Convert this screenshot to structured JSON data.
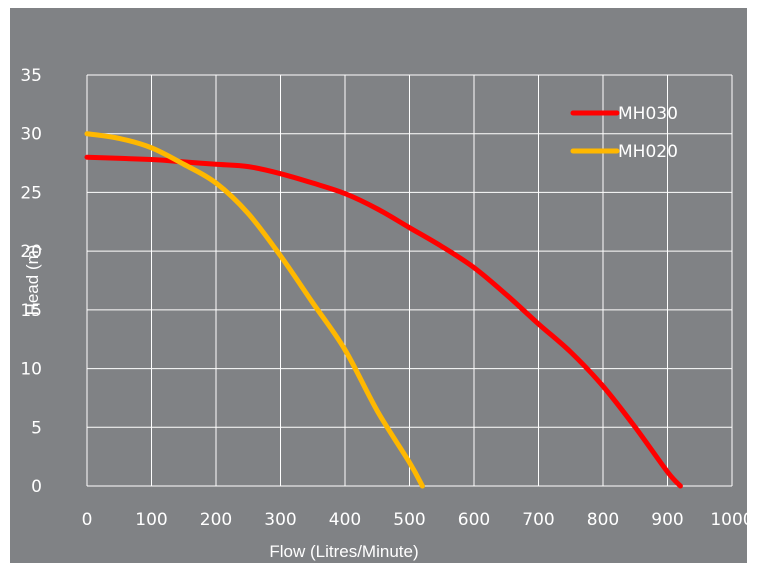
{
  "chart_data": {
    "type": "line",
    "xlabel": "Flow (Litres/Minute)",
    "ylabel": "Head (m)",
    "xlim": [
      0,
      1000
    ],
    "ylim": [
      0,
      35
    ],
    "x_ticks": [
      "0",
      "100",
      "200",
      "300",
      "400",
      "500",
      "600",
      "700",
      "800",
      "900",
      "1000"
    ],
    "y_ticks": [
      "0",
      "5",
      "10",
      "15",
      "20",
      "25",
      "30",
      "35"
    ],
    "grid": true,
    "legend_position": "top-right",
    "series": [
      {
        "name": "MH030",
        "color": "#ff0000",
        "x": [
          0,
          100,
          150,
          200,
          250,
          300,
          350,
          400,
          450,
          500,
          550,
          600,
          650,
          700,
          750,
          800,
          850,
          900,
          920
        ],
        "y": [
          28,
          27.8,
          27.6,
          27.4,
          27.2,
          26.6,
          25.8,
          24.9,
          23.6,
          22.0,
          20.4,
          18.6,
          16.3,
          13.8,
          11.4,
          8.5,
          5.0,
          1.2,
          0
        ]
      },
      {
        "name": "MH020",
        "color": "#ffb800",
        "x": [
          0,
          50,
          100,
          150,
          200,
          250,
          300,
          350,
          400,
          450,
          500,
          520
        ],
        "y": [
          30,
          29.6,
          28.8,
          27.4,
          25.8,
          23.2,
          19.6,
          15.6,
          11.6,
          6.4,
          2.0,
          0
        ]
      }
    ]
  }
}
